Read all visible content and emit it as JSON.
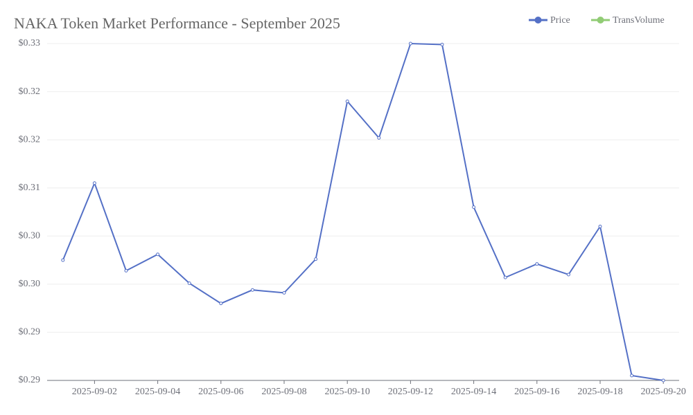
{
  "chart_data": {
    "type": "line",
    "title": "NAKA Token Market Performance - September 2025",
    "categories": [
      null,
      "2025-09-02",
      null,
      "2025-09-04",
      null,
      "2025-09-06",
      null,
      "2025-09-08",
      null,
      "2025-09-10",
      null,
      "2025-09-12",
      null,
      "2025-09-14",
      null,
      "2025-09-16",
      null,
      "2025-09-18",
      null,
      "2025-09-20"
    ],
    "series": [
      {
        "name": "Price",
        "color": "#5470c6",
        "values": [
          0.3025,
          0.3105,
          0.3014,
          0.3031,
          0.3001,
          0.298,
          0.2994,
          0.2991,
          0.3026,
          0.319,
          0.3152,
          0.325,
          0.3249,
          0.308,
          0.3007,
          0.3021,
          0.301,
          0.306,
          0.2905,
          0.29
        ]
      },
      {
        "name": "TransVolume",
        "color": "#91cc75",
        "values": [
          null,
          null,
          null,
          null,
          null,
          null,
          null,
          null,
          null,
          null,
          null,
          null,
          null,
          null,
          null,
          null,
          null,
          null,
          null,
          null
        ]
      }
    ],
    "ylim": [
      0.29,
      0.325
    ],
    "yticks": [
      {
        "value": 0.29,
        "label": "$0.29"
      },
      {
        "value": 0.295,
        "label": "$0.29"
      },
      {
        "value": 0.3,
        "label": "$0.30"
      },
      {
        "value": 0.305,
        "label": "$0.30"
      },
      {
        "value": 0.31,
        "label": "$0.31"
      },
      {
        "value": 0.315,
        "label": "$0.32"
      },
      {
        "value": 0.32,
        "label": "$0.32"
      },
      {
        "value": 0.325,
        "label": "$0.33"
      }
    ],
    "grid": true,
    "legend": "top-right"
  }
}
